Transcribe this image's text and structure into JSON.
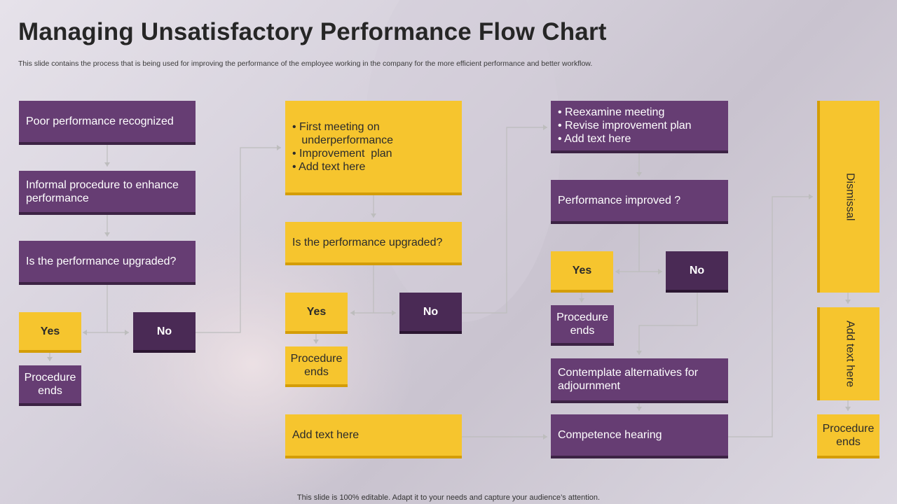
{
  "title": "Managing Unsatisfactory Performance Flow Chart",
  "subtitle": "This slide contains the process that is being used for improving the performance of the employee working in the company for the more efficient performance and better workflow.",
  "footer": "This slide is 100% editable. Adapt it to your needs and capture your audience’s attention.",
  "colors": {
    "purple": "#663d73",
    "dark_purple": "#4a2a55",
    "yellow": "#f6c52e",
    "connector": "#bdbdbd"
  },
  "flow": {
    "col1": {
      "poor": "Poor performance recognized",
      "informal": "Informal procedure to enhance performance",
      "upgraded_q": "Is the performance upgraded?",
      "yes": "Yes",
      "no": "No",
      "ends": "Procedure ends"
    },
    "col2": {
      "meeting_items": [
        "• First meeting on",
        "   underperformance",
        "• Improvement  plan",
        "• Add text here"
      ],
      "upgraded_q": "Is the performance upgraded?",
      "yes": "Yes",
      "no": "No",
      "ends": "Procedure ends",
      "add_text": "Add text here"
    },
    "col3": {
      "reexamine_items": [
        "• Reexamine meeting",
        "• Revise improvement plan",
        "• Add text here"
      ],
      "improved_q": "Performance improved ?",
      "yes": "Yes",
      "no": "No",
      "ends": "Procedure ends",
      "contemplate": "Contemplate alternatives for adjournment",
      "hearing": "Competence hearing"
    },
    "col4": {
      "dismissal": "Dismissal",
      "add_text": "Add text here",
      "ends": "Procedure ends"
    }
  }
}
